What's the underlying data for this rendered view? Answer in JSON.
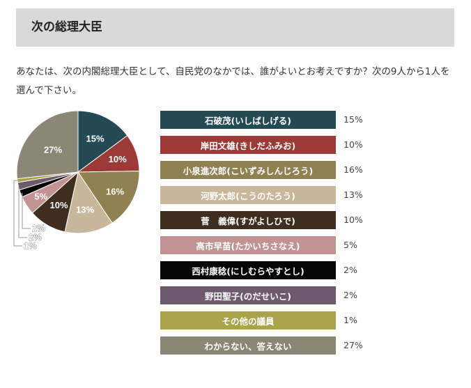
{
  "header": {
    "title": "次の総理大臣"
  },
  "question": "あなたは、次の内閣総理大臣として、自民党のなかでは、誰がよいとお考えですか？次の9人から1人を選んで下さい。",
  "chart_data": {
    "type": "pie",
    "title": "",
    "categories": [
      "石破茂(いしばしげる)",
      "岸田文雄(きしだふみお)",
      "小泉進次郎(こいずみしんじろう)",
      "河野太郎(こうのたろう)",
      "菅　義偉(すがよしひで)",
      "高市早苗(たかいちさなえ)",
      "西村康稔(にしむらやすとし)",
      "野田聖子(のだせいこ)",
      "その他の議員",
      "わからない、答えない"
    ],
    "values": [
      15,
      10,
      16,
      13,
      10,
      5,
      2,
      2,
      1,
      27
    ],
    "labels": [
      "15%",
      "10%",
      "16%",
      "13%",
      "10%",
      "5%",
      "2%",
      "2%",
      "1%",
      "27%"
    ],
    "colors": [
      "#234a55",
      "#9b3a36",
      "#8f8151",
      "#c9b79b",
      "#3f2d1e",
      "#c29393",
      "#050505",
      "#6e5a6d",
      "#a9a44a",
      "#8b8776"
    ],
    "start": "12 o'clock",
    "direction": "clockwise",
    "outside_labels": [
      "2%",
      "2%",
      "1%"
    ],
    "legend_position": "right"
  }
}
